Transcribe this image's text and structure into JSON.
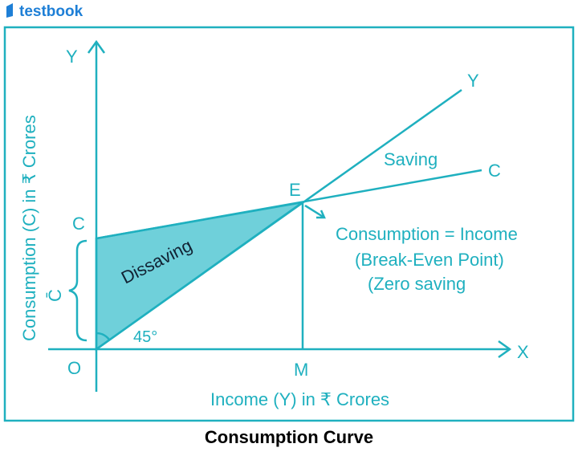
{
  "header": {
    "logo": "testbook"
  },
  "diagram": {
    "y_axis_label": "Y",
    "x_axis_label": "X",
    "origin_label": "O",
    "m_label": "M",
    "line_y_label": "Y",
    "line_c_label": "C",
    "c_intercept_label": "C",
    "e_label": "E",
    "saving_label": "Saving",
    "dissaving_label": "Dissaving",
    "angle_label": "45°",
    "c_bar_label": "C̄",
    "note_lines": [
      "Consumption = Income",
      "(Break-Even Point)",
      "(Zero saving"
    ],
    "x_axis_title": "Income (Y) in ₹ Crores",
    "y_axis_title": "Consumption (C) in ₹ Crores"
  },
  "caption": "Consumption Curve"
}
